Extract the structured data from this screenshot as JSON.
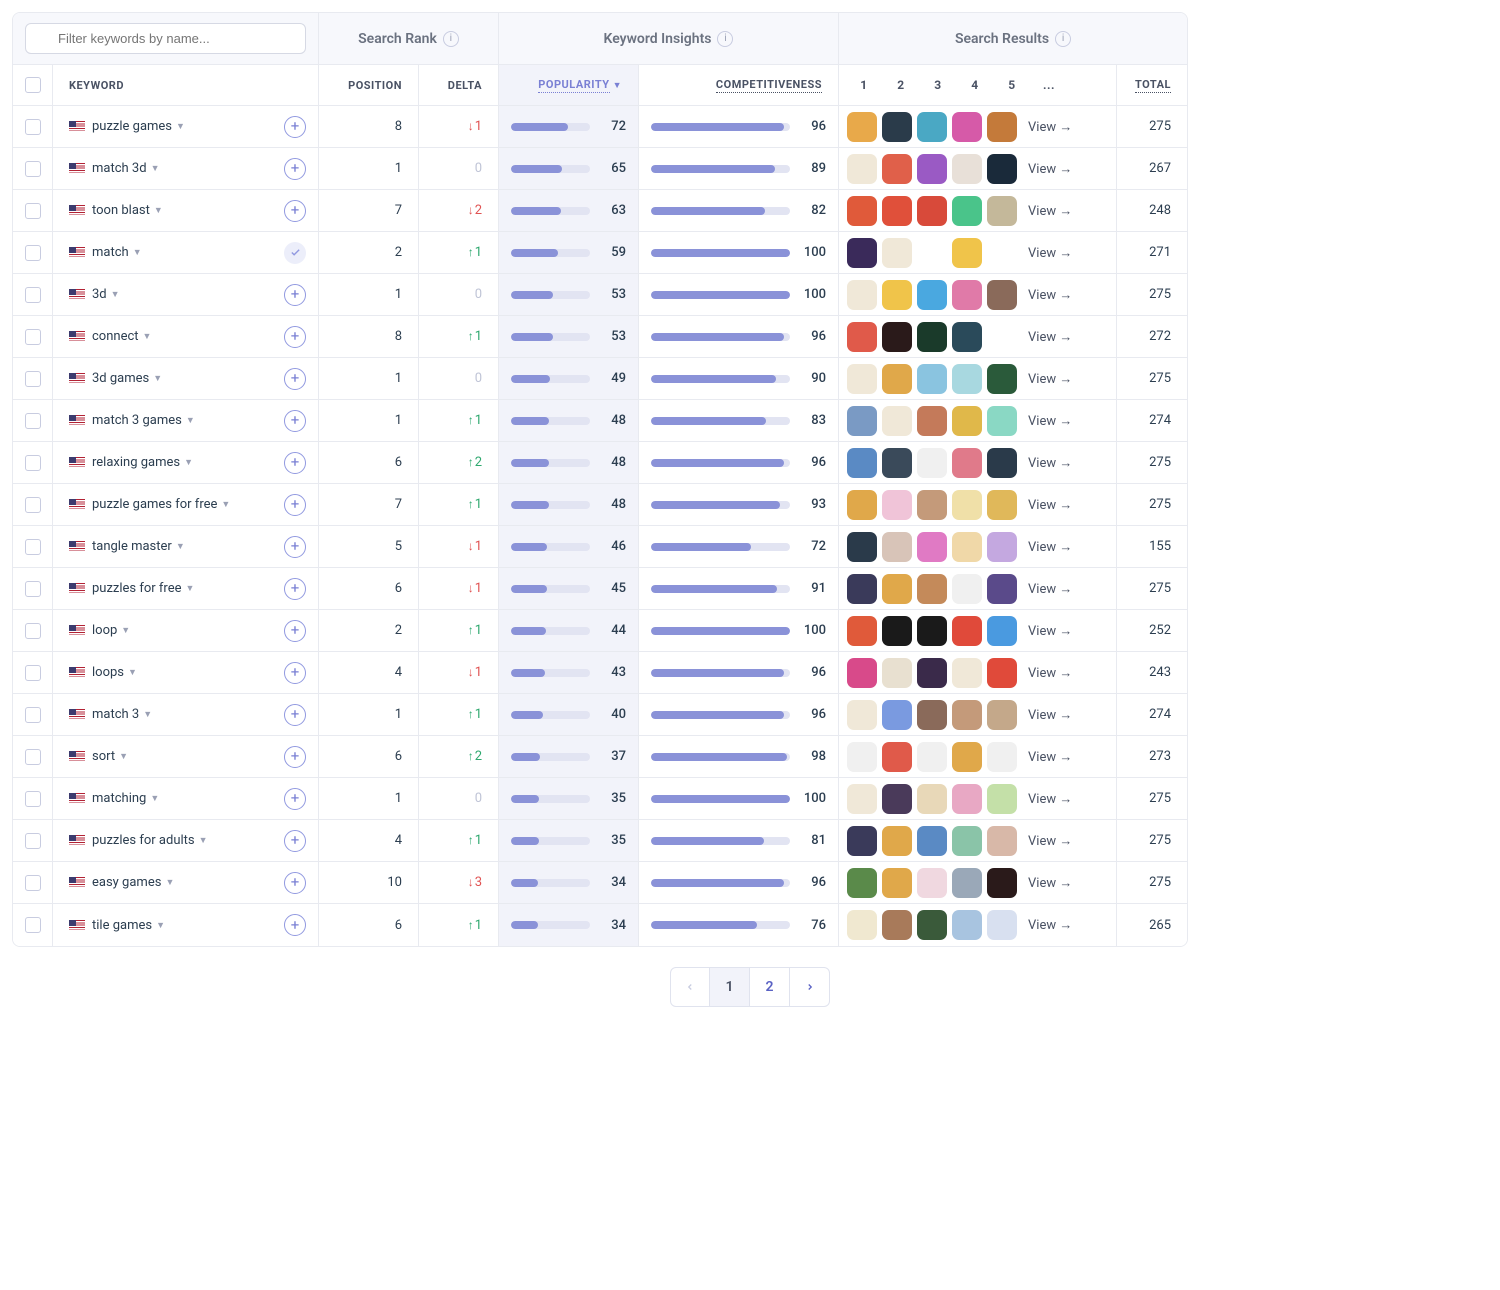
{
  "filter": {
    "placeholder": "Filter keywords by name..."
  },
  "headers": {
    "search_rank": "Search Rank",
    "keyword_insights": "Keyword Insights",
    "search_results": "Search Results"
  },
  "subheaders": {
    "keyword": "KEYWORD",
    "position": "POSITION",
    "delta": "DELTA",
    "popularity": "POPULARITY",
    "competitiveness": "COMPETITIVENESS",
    "total": "TOTAL",
    "result_cols": [
      "1",
      "2",
      "3",
      "4",
      "5",
      "..."
    ]
  },
  "view_label": "View →",
  "colors": {
    "bar_fill": "#8a92d8",
    "bar_track": "#e2e4f2",
    "delta_up": "#2ea86e",
    "delta_down": "#e05252",
    "delta_neutral": "#bfc4d6",
    "header_bg": "#f7f8fc",
    "pop_col_bg": "#f2f3fa",
    "border": "#e8eaf0",
    "accent": "#7a80d4"
  },
  "rows": [
    {
      "keyword": "puzzle games",
      "position": 8,
      "delta": -1,
      "popularity": 72,
      "competitiveness": 96,
      "total": 275,
      "added": false,
      "icons": [
        "#e8a94a",
        "#2a3b4a",
        "#4aa8c4",
        "#d65aa8",
        "#c47a3a"
      ]
    },
    {
      "keyword": "match 3d",
      "position": 1,
      "delta": 0,
      "popularity": 65,
      "competitiveness": 89,
      "total": 267,
      "added": false,
      "icons": [
        "#f0e8d8",
        "#e0604a",
        "#9a5ac4",
        "#e8e0d8",
        "#1a2a3a"
      ]
    },
    {
      "keyword": "toon blast",
      "position": 7,
      "delta": -2,
      "popularity": 63,
      "competitiveness": 82,
      "total": 248,
      "added": false,
      "icons": [
        "#e05a3a",
        "#e0503a",
        "#d84a3a",
        "#4ac48a",
        "#c4b89a"
      ]
    },
    {
      "keyword": "match",
      "position": 2,
      "delta": 1,
      "popularity": 59,
      "competitiveness": 100,
      "total": 271,
      "added": true,
      "icons": [
        "#3a2a5a",
        "#f0e8d8",
        "#ffffff",
        "#f0c44a",
        "#ffffff"
      ]
    },
    {
      "keyword": "3d",
      "position": 1,
      "delta": 0,
      "popularity": 53,
      "competitiveness": 100,
      "total": 275,
      "added": false,
      "icons": [
        "#f0e8d8",
        "#f0c44a",
        "#4aa8e0",
        "#e07aa8",
        "#8a6a5a"
      ]
    },
    {
      "keyword": "connect",
      "position": 8,
      "delta": 1,
      "popularity": 53,
      "competitiveness": 96,
      "total": 272,
      "added": false,
      "icons": [
        "#e05a4a",
        "#2a1a1a",
        "#1a3a2a",
        "#2a4a5a",
        "#ffffff"
      ]
    },
    {
      "keyword": "3d games",
      "position": 1,
      "delta": 0,
      "popularity": 49,
      "competitiveness": 90,
      "total": 275,
      "added": false,
      "icons": [
        "#f0e8d8",
        "#e0a84a",
        "#8ac4e0",
        "#a8d8e0",
        "#2a5a3a"
      ]
    },
    {
      "keyword": "match 3 games",
      "position": 1,
      "delta": 1,
      "popularity": 48,
      "competitiveness": 83,
      "total": 274,
      "added": false,
      "icons": [
        "#7a9ac4",
        "#f0e8d8",
        "#c47a5a",
        "#e0b84a",
        "#8ad8c4"
      ]
    },
    {
      "keyword": "relaxing games",
      "position": 6,
      "delta": 2,
      "popularity": 48,
      "competitiveness": 96,
      "total": 275,
      "added": false,
      "icons": [
        "#5a8ac4",
        "#3a4a5a",
        "#f0f0f0",
        "#e07a8a",
        "#2a3a4a"
      ]
    },
    {
      "keyword": "puzzle games for free",
      "position": 7,
      "delta": 1,
      "popularity": 48,
      "competitiveness": 93,
      "total": 275,
      "added": false,
      "icons": [
        "#e0a84a",
        "#f0c4d8",
        "#c49a7a",
        "#f0e0a8",
        "#e0b85a"
      ]
    },
    {
      "keyword": "tangle master",
      "position": 5,
      "delta": -1,
      "popularity": 46,
      "competitiveness": 72,
      "total": 155,
      "added": false,
      "icons": [
        "#2a3a4a",
        "#d8c4b8",
        "#e07ac4",
        "#f0d8a8",
        "#c4a8e0"
      ]
    },
    {
      "keyword": "puzzles for free",
      "position": 6,
      "delta": -1,
      "popularity": 45,
      "competitiveness": 91,
      "total": 275,
      "added": false,
      "icons": [
        "#3a3a5a",
        "#e0a84a",
        "#c48a5a",
        "#f0f0f0",
        "#5a4a8a"
      ]
    },
    {
      "keyword": "loop",
      "position": 2,
      "delta": 1,
      "popularity": 44,
      "competitiveness": 100,
      "total": 252,
      "added": false,
      "icons": [
        "#e05a3a",
        "#1a1a1a",
        "#1a1a1a",
        "#e04a3a",
        "#4a9ae0"
      ]
    },
    {
      "keyword": "loops",
      "position": 4,
      "delta": -1,
      "popularity": 43,
      "competitiveness": 96,
      "total": 243,
      "added": false,
      "icons": [
        "#d84a8a",
        "#e8e0d0",
        "#3a2a4a",
        "#f0e8d8",
        "#e04a3a"
      ]
    },
    {
      "keyword": "match 3",
      "position": 1,
      "delta": 1,
      "popularity": 40,
      "competitiveness": 96,
      "total": 274,
      "added": false,
      "icons": [
        "#f0e8d8",
        "#7a9ae0",
        "#8a6a5a",
        "#c49a7a",
        "#c4a88a"
      ]
    },
    {
      "keyword": "sort",
      "position": 6,
      "delta": 2,
      "popularity": 37,
      "competitiveness": 98,
      "total": 273,
      "added": false,
      "icons": [
        "#f0f0f0",
        "#e05a4a",
        "#f0f0f0",
        "#e0a84a",
        "#f0f0f0"
      ]
    },
    {
      "keyword": "matching",
      "position": 1,
      "delta": 0,
      "popularity": 35,
      "competitiveness": 100,
      "total": 275,
      "added": false,
      "icons": [
        "#f0e8d8",
        "#4a3a5a",
        "#e8d8b8",
        "#e8a8c4",
        "#c4e0a8"
      ]
    },
    {
      "keyword": "puzzles for adults",
      "position": 4,
      "delta": 1,
      "popularity": 35,
      "competitiveness": 81,
      "total": 275,
      "added": false,
      "icons": [
        "#3a3a5a",
        "#e0a84a",
        "#5a8ac4",
        "#8ac4a8",
        "#d8b8a8"
      ]
    },
    {
      "keyword": "easy games",
      "position": 10,
      "delta": -3,
      "popularity": 34,
      "competitiveness": 96,
      "total": 275,
      "added": false,
      "icons": [
        "#5a8a4a",
        "#e0a84a",
        "#f0d8e0",
        "#9aa8b8",
        "#2a1a1a"
      ]
    },
    {
      "keyword": "tile games",
      "position": 6,
      "delta": 1,
      "popularity": 34,
      "competitiveness": 76,
      "total": 265,
      "added": false,
      "icons": [
        "#f0e8d0",
        "#a87a5a",
        "#3a5a3a",
        "#a8c4e0",
        "#d8e0f0"
      ]
    }
  ],
  "pagination": {
    "pages": [
      "1",
      "2"
    ],
    "current": 1
  }
}
